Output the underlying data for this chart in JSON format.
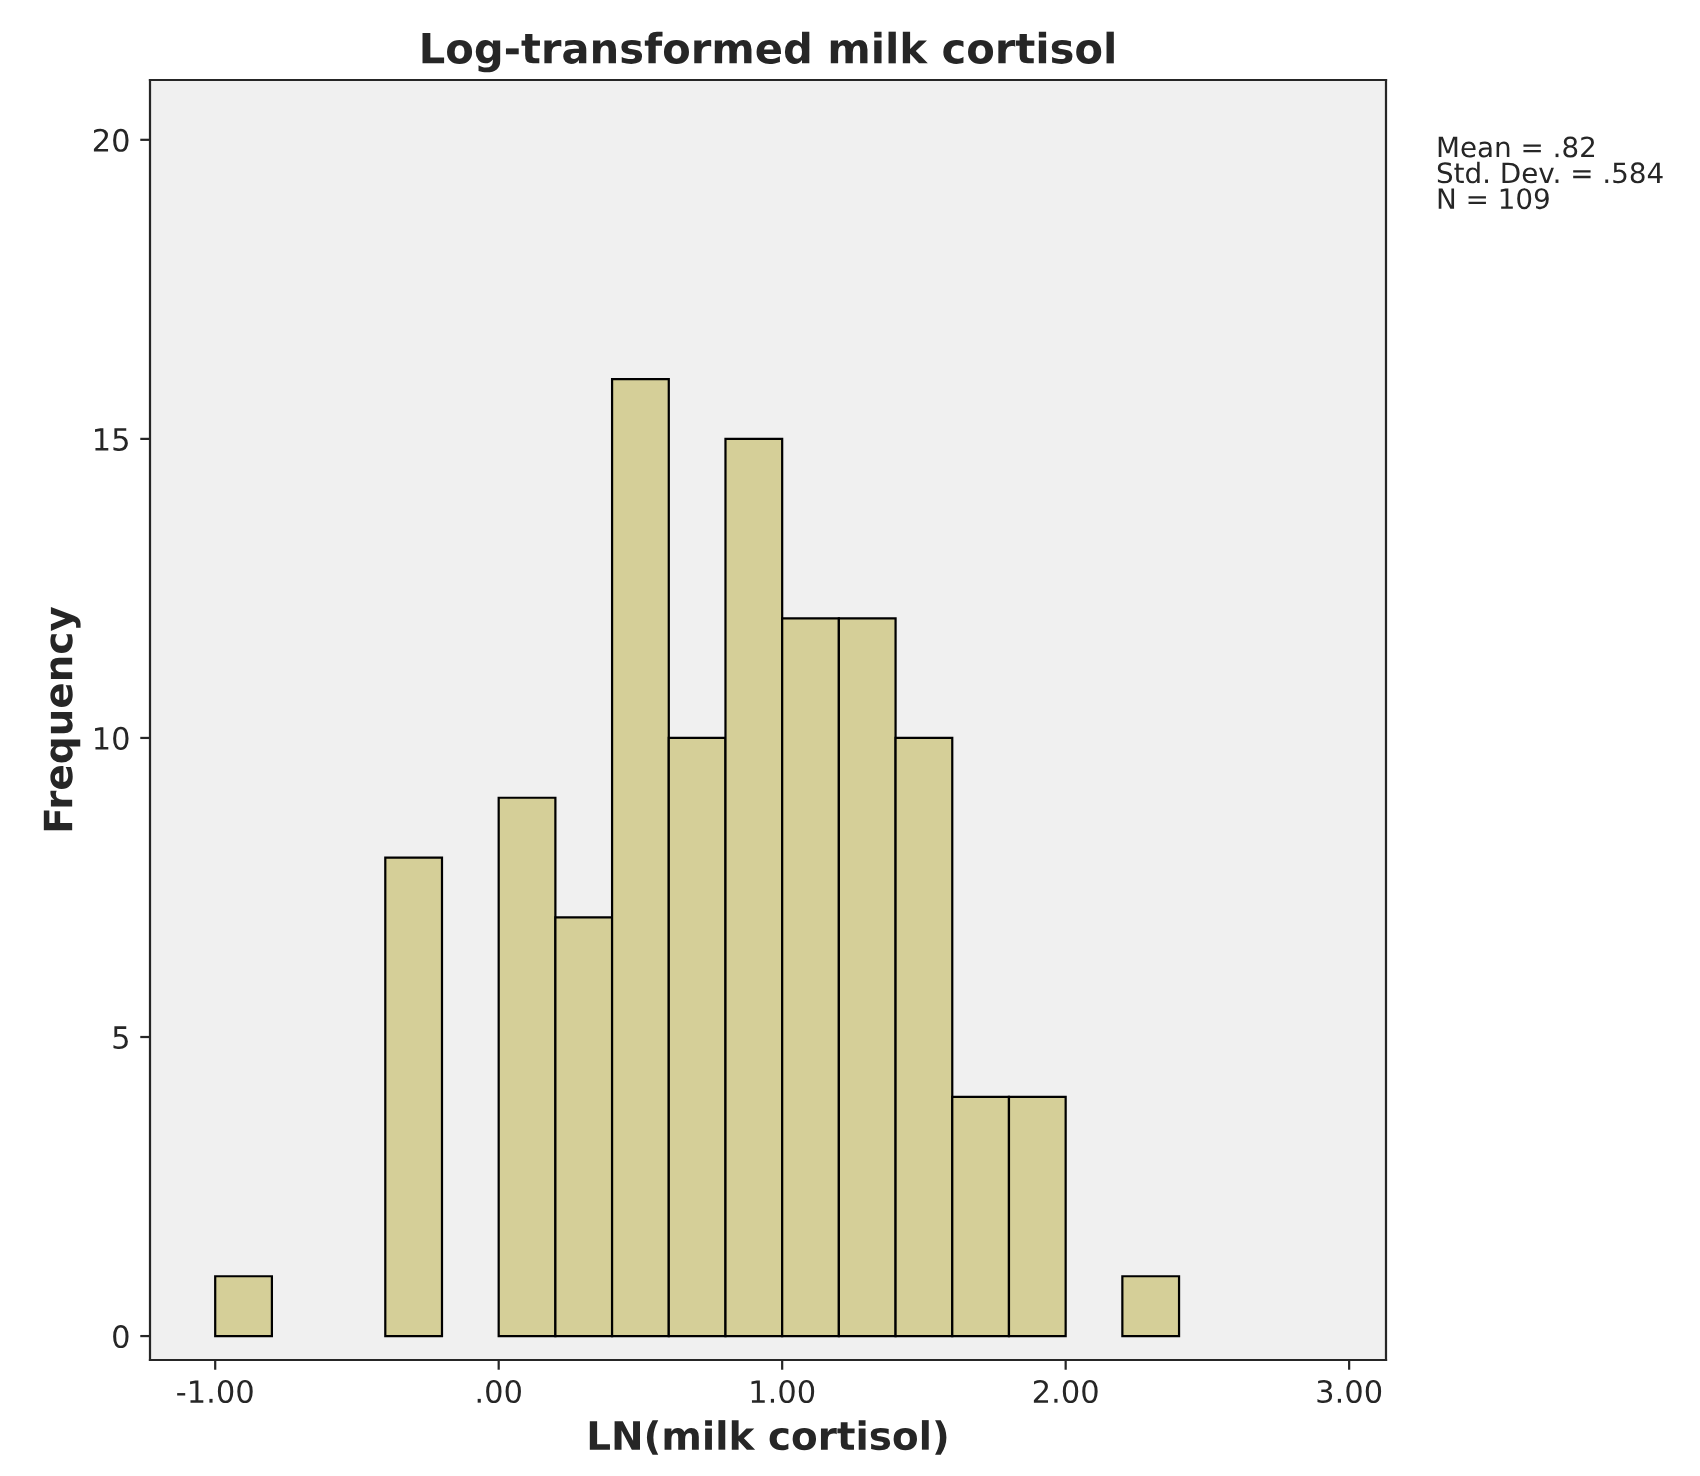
{
  "chart_data": {
    "type": "histogram",
    "title": "Log-transformed milk cortisol",
    "xlabel": "LN(milk cortisol)",
    "ylabel": "Frequency",
    "bins": [
      -1.0,
      -0.8,
      -0.6,
      -0.4,
      -0.2,
      0.0,
      0.2,
      0.4,
      0.6,
      0.8,
      1.0,
      1.2,
      1.4,
      1.6,
      1.8,
      2.0,
      2.2,
      2.4
    ],
    "values": [
      1,
      0,
      0,
      8,
      0,
      9,
      7,
      16,
      10,
      15,
      12,
      12,
      10,
      4,
      4,
      0,
      1
    ],
    "color": "#d5cf98",
    "xlim": [
      -1.23,
      3.13
    ],
    "ylim": [
      -0.4,
      21
    ],
    "xticks": [
      {
        "value": -1,
        "label": "-1.00"
      },
      {
        "value": 0,
        "label": ".00"
      },
      {
        "value": 1,
        "label": "1.00"
      },
      {
        "value": 2,
        "label": "2.00"
      },
      {
        "value": 3,
        "label": "3.00"
      }
    ],
    "yticks": [
      0,
      5,
      10,
      15,
      20
    ],
    "grid": false,
    "annotations": [
      "Mean = .82\nStd. Dev. = .584\nN = 109"
    ]
  }
}
